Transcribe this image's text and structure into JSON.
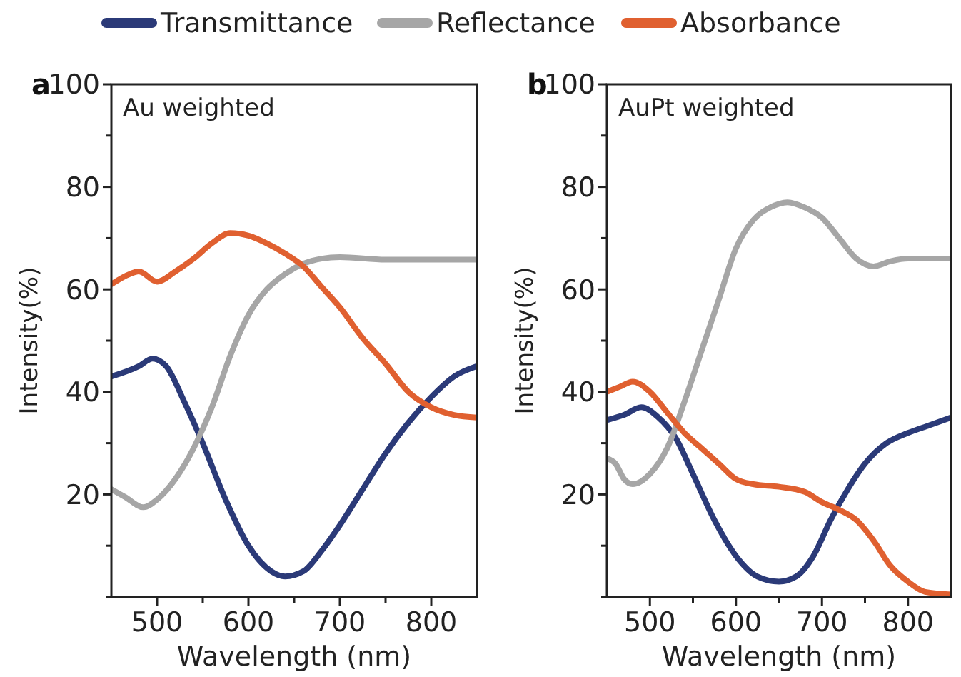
{
  "chart_data": [
    {
      "type": "line",
      "title": "a",
      "annotations": [
        "Au weighted"
      ],
      "xlabel": "Wavelength (nm)",
      "ylabel": "Intensity(%)",
      "xlim": [
        450,
        850
      ],
      "xticks": [
        500,
        {
          "value": 550,
          "label": null
        },
        600,
        {
          "value": 650,
          "label": null
        },
        700,
        {
          "value": 750,
          "label": null
        },
        800
      ],
      "ylim": [
        0,
        100
      ],
      "yticks": [
        {
          "value": 0,
          "label": null
        },
        {
          "value": 10,
          "label": null
        },
        20,
        {
          "value": 30,
          "label": null
        },
        40,
        {
          "value": 50,
          "label": null
        },
        60,
        {
          "value": 70,
          "label": null
        },
        80,
        {
          "value": 90,
          "label": null
        },
        100
      ],
      "legend": "top",
      "grid": false,
      "marker": "none",
      "line_style": "solid",
      "series": [
        {
          "name": "Transmittance",
          "color": "#2b3a78",
          "x": [
            450,
            480,
            495,
            510,
            530,
            550,
            575,
            600,
            625,
            640,
            660,
            680,
            700,
            725,
            750,
            775,
            800,
            825,
            850
          ],
          "values": [
            43,
            45,
            46.5,
            45,
            38,
            30,
            19,
            10,
            5,
            4,
            5,
            9,
            14,
            21,
            28,
            34,
            39,
            43,
            45
          ]
        },
        {
          "name": "Reflectance",
          "color": "#a6a6a6",
          "x": [
            450,
            465,
            485,
            500,
            520,
            540,
            560,
            580,
            600,
            620,
            640,
            660,
            680,
            700,
            750,
            800,
            850
          ],
          "values": [
            21,
            19.5,
            17.5,
            19,
            23,
            29,
            37,
            47,
            55,
            60,
            63,
            65,
            66,
            66.3,
            65.8,
            65.8,
            65.8
          ]
        },
        {
          "name": "Absorbance",
          "color": "#e06030",
          "x": [
            450,
            470,
            480,
            500,
            520,
            540,
            560,
            580,
            600,
            620,
            640,
            660,
            680,
            700,
            725,
            750,
            775,
            800,
            825,
            850
          ],
          "values": [
            61,
            63,
            63.5,
            61.5,
            63.5,
            66,
            69,
            71,
            70.5,
            69,
            67,
            64.5,
            60.5,
            56.5,
            50.5,
            45.5,
            40,
            37,
            35.5,
            35
          ]
        }
      ]
    },
    {
      "type": "line",
      "title": "b",
      "annotations": [
        "AuPt weighted"
      ],
      "xlabel": "Wavelength (nm)",
      "ylabel": "Intensity(%)",
      "xlim": [
        450,
        850
      ],
      "xticks": [
        500,
        {
          "value": 550,
          "label": null
        },
        600,
        {
          "value": 650,
          "label": null
        },
        700,
        {
          "value": 750,
          "label": null
        },
        800
      ],
      "ylim": [
        0,
        100
      ],
      "yticks": [
        {
          "value": 0,
          "label": null
        },
        {
          "value": 10,
          "label": null
        },
        20,
        {
          "value": 30,
          "label": null
        },
        40,
        {
          "value": 50,
          "label": null
        },
        60,
        {
          "value": 70,
          "label": null
        },
        80,
        {
          "value": 90,
          "label": null
        },
        100
      ],
      "grid": false,
      "marker": "none",
      "line_style": "solid",
      "series": [
        {
          "color": "#2b3a78",
          "x": [
            450,
            470,
            490,
            510,
            530,
            550,
            575,
            600,
            625,
            650,
            670,
            690,
            710,
            730,
            750,
            775,
            800,
            825,
            850
          ],
          "values": [
            34.5,
            35.5,
            37,
            35,
            31,
            24,
            15,
            8,
            4,
            3,
            4,
            8,
            15,
            21,
            26,
            30,
            32,
            33.5,
            35
          ]
        },
        {
          "color": "#a6a6a6",
          "x": [
            450,
            460,
            470,
            480,
            500,
            520,
            540,
            560,
            580,
            600,
            620,
            640,
            660,
            680,
            700,
            720,
            740,
            760,
            780,
            800,
            850
          ],
          "values": [
            27,
            26,
            23,
            22,
            24,
            29,
            38,
            48,
            58,
            68,
            73.5,
            76,
            77,
            76,
            74,
            70,
            66,
            64.5,
            65.5,
            66,
            66
          ]
        },
        {
          "color": "#e06030",
          "x": [
            450,
            465,
            480,
            500,
            520,
            540,
            560,
            580,
            600,
            620,
            650,
            680,
            700,
            720,
            740,
            760,
            780,
            800,
            820,
            850
          ],
          "values": [
            40,
            41,
            42,
            40,
            36,
            32,
            29,
            26,
            23,
            22,
            21.5,
            20.5,
            18.5,
            17,
            15,
            11,
            6,
            3,
            1,
            0.5
          ]
        }
      ]
    }
  ]
}
